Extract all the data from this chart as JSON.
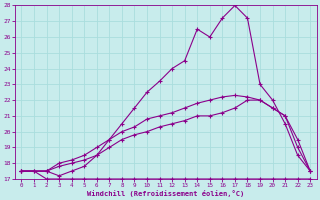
{
  "xlabel": "Windchill (Refroidissement éolien,°C)",
  "bg_color": "#c8ecec",
  "line_color": "#8b008b",
  "grid_color": "#aadddd",
  "xlim": [
    -0.5,
    23.5
  ],
  "ylim": [
    17,
    28
  ],
  "xticks": [
    0,
    1,
    2,
    3,
    4,
    5,
    6,
    7,
    8,
    9,
    10,
    11,
    12,
    13,
    14,
    15,
    16,
    17,
    18,
    19,
    20,
    21,
    22,
    23
  ],
  "yticks": [
    17,
    18,
    19,
    20,
    21,
    22,
    23,
    24,
    25,
    26,
    27,
    28
  ],
  "line1_x": [
    0,
    1,
    2,
    3,
    4,
    5,
    6,
    7,
    8,
    9,
    10,
    11,
    12,
    13,
    14,
    15,
    16,
    17,
    18,
    19,
    20,
    21,
    22,
    23
  ],
  "line1_y": [
    17.5,
    17.5,
    17.0,
    17.0,
    17.0,
    17.0,
    17.0,
    17.0,
    17.0,
    17.0,
    17.0,
    17.0,
    17.0,
    17.0,
    17.0,
    17.0,
    17.0,
    17.0,
    17.0,
    17.0,
    17.0,
    17.0,
    17.0,
    17.0
  ],
  "line2_x": [
    0,
    2,
    3,
    4,
    5,
    6,
    7,
    8,
    9,
    10,
    11,
    12,
    13,
    14,
    15,
    16,
    17,
    18,
    19,
    20,
    21,
    22,
    23
  ],
  "line2_y": [
    17.5,
    17.5,
    17.8,
    18.0,
    18.2,
    18.5,
    19.0,
    19.5,
    19.8,
    20.0,
    20.3,
    20.5,
    20.7,
    21.0,
    21.0,
    21.2,
    21.5,
    22.0,
    22.0,
    21.5,
    21.0,
    19.0,
    17.5
  ],
  "line3_x": [
    0,
    2,
    3,
    4,
    5,
    6,
    7,
    8,
    9,
    10,
    11,
    12,
    13,
    14,
    15,
    16,
    17,
    18,
    19,
    20,
    21,
    22,
    23
  ],
  "line3_y": [
    17.5,
    17.5,
    18.0,
    18.2,
    18.5,
    19.0,
    19.5,
    20.0,
    20.3,
    20.8,
    21.0,
    21.2,
    21.5,
    21.8,
    22.0,
    22.2,
    22.3,
    22.2,
    22.0,
    21.5,
    21.0,
    19.5,
    17.5
  ],
  "line4_x": [
    0,
    1,
    2,
    3,
    4,
    5,
    6,
    7,
    8,
    9,
    10,
    11,
    12,
    13,
    14,
    15,
    16,
    17,
    18,
    19,
    20,
    21,
    22,
    23
  ],
  "line4_y": [
    17.5,
    17.5,
    17.5,
    17.2,
    17.5,
    17.8,
    18.5,
    19.5,
    20.5,
    21.5,
    22.5,
    23.2,
    24.0,
    24.5,
    26.5,
    26.0,
    27.2,
    28.0,
    27.2,
    23.0,
    22.0,
    20.5,
    18.5,
    17.5
  ]
}
